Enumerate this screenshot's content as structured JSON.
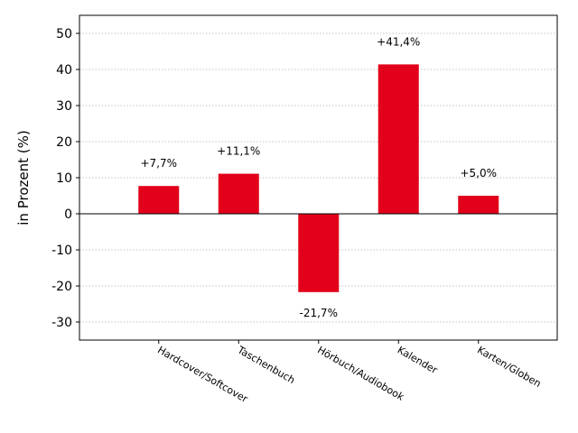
{
  "chart_data": {
    "type": "bar",
    "title": "",
    "xlabel": "",
    "ylabel": "in Prozent (%)",
    "categories": [
      "Hardcover/Softcover",
      "Taschenbuch",
      "Hörbuch/Audiobook",
      "Kalender",
      "Karten/Globen"
    ],
    "values": [
      7.7,
      11.1,
      -21.7,
      41.4,
      5.0
    ],
    "data_labels": [
      "+7,7%",
      "+11,1%",
      "-21,7%",
      "+41,4%",
      "+5,0%"
    ],
    "ylim": [
      -35,
      55
    ],
    "yticks": [
      -30,
      -20,
      -10,
      0,
      10,
      20,
      30,
      40,
      50
    ],
    "ytick_labels": [
      "-30",
      "-20",
      "-10",
      "0",
      "10",
      "20",
      "30",
      "40",
      "50"
    ],
    "grid": "horizontal dotted",
    "bar_color": "#e2001a",
    "legend": "none"
  }
}
